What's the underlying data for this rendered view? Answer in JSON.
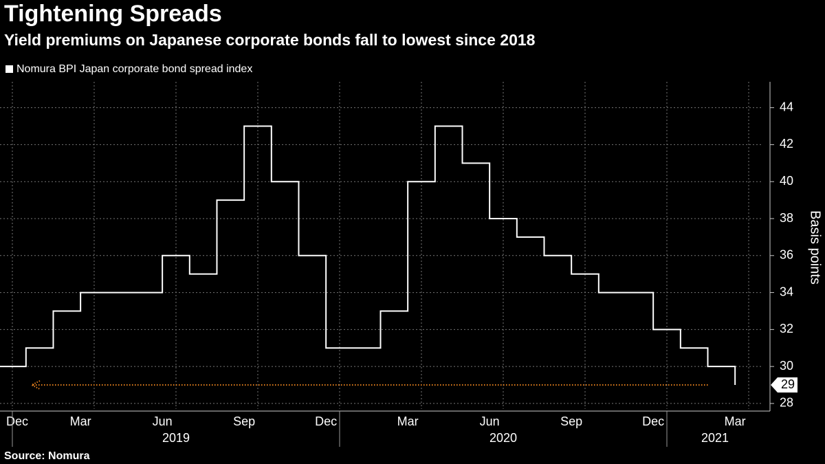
{
  "chart_data": {
    "type": "line",
    "title": "Tightening Spreads",
    "subtitle": "Yield premiums on Japanese corporate bonds fall to lowest since 2018",
    "y_label": "Basis points",
    "source": "Source: Nomura",
    "x": [
      "2018-12",
      "2019-01",
      "2019-02",
      "2019-03",
      "2019-04",
      "2019-05",
      "2019-06",
      "2019-07",
      "2019-08",
      "2019-09",
      "2019-10",
      "2019-11",
      "2019-12",
      "2020-01",
      "2020-02",
      "2020-03",
      "2020-04",
      "2020-05",
      "2020-06",
      "2020-07",
      "2020-08",
      "2020-09",
      "2020-10",
      "2020-11",
      "2020-12",
      "2021-01",
      "2021-02",
      "2021-03"
    ],
    "series": [
      {
        "name": "Nomura BPI Japan corporate bond spread index",
        "color": "#ffffff",
        "values": [
          30,
          31,
          33,
          34,
          34,
          34,
          36,
          35,
          39,
          43,
          40,
          36,
          31,
          31,
          33,
          40,
          43,
          41,
          38,
          37,
          36,
          35,
          34,
          34,
          32,
          31,
          30,
          29
        ]
      }
    ],
    "xlim": [
      "2018-12",
      "2021-04"
    ],
    "xticks": [
      {
        "value": "2018-12",
        "label": "Dec"
      },
      {
        "value": "2019-03",
        "label": "Mar"
      },
      {
        "value": "2019-06",
        "label": "Jun"
      },
      {
        "value": "2019-09",
        "label": "Sep"
      },
      {
        "value": "2019-12",
        "label": "Dec"
      },
      {
        "value": "2020-03",
        "label": "Mar"
      },
      {
        "value": "2020-06",
        "label": "Jun"
      },
      {
        "value": "2020-09",
        "label": "Sep"
      },
      {
        "value": "2020-12",
        "label": "Dec"
      },
      {
        "value": "2021-03",
        "label": "Mar"
      }
    ],
    "x_year_ticks": [
      "2019",
      "2020",
      "2021"
    ],
    "ylim": [
      27.7,
      45.4
    ],
    "yticks": [
      28,
      30,
      32,
      34,
      36,
      38,
      40,
      42,
      44
    ],
    "grid": true,
    "step": true,
    "reference_line": {
      "value": 29,
      "color": "#e8821e"
    }
  }
}
